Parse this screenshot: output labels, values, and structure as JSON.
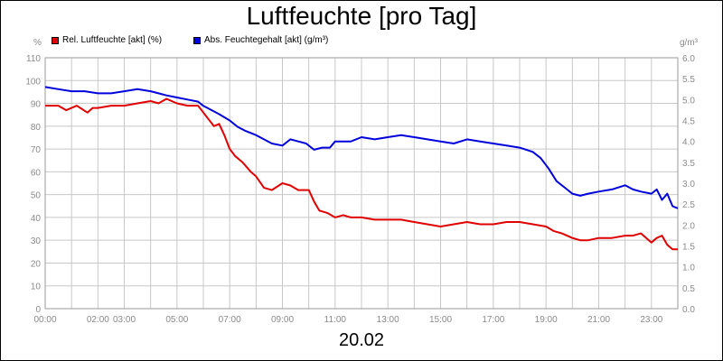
{
  "chart_data": {
    "type": "line",
    "title": "Luftfeuchte [pro Tag]",
    "xlabel": "20.02",
    "ylabel_left": "%",
    "ylabel_right": "g/m³",
    "ylim_left": [
      0,
      110
    ],
    "ylim_right": [
      0,
      6
    ],
    "grid": true,
    "legend_placement": "top-left",
    "x_tick_labels": [
      "00:00",
      "02:00",
      "03:00",
      "05:00",
      "07:00",
      "09:00",
      "11:00",
      "13:00",
      "15:00",
      "17:00",
      "19:00",
      "21:00",
      "23:00"
    ],
    "x_tick_hours": [
      0,
      2,
      3,
      5,
      7,
      9,
      11,
      13,
      15,
      17,
      19,
      21,
      23
    ],
    "x_range_hours": [
      0,
      24
    ],
    "y_left_ticks": [
      0,
      10,
      20,
      30,
      40,
      50,
      60,
      70,
      80,
      90,
      100,
      110
    ],
    "y_right_ticks": [
      "0.0",
      "0.5",
      "1.0",
      "1.5",
      "2.0",
      "2.5",
      "3.0",
      "3.5",
      "4.0",
      "4.5",
      "5.0",
      "5.5",
      "6.0"
    ],
    "series": [
      {
        "name": "Rel. Luftfeuchte [akt] (%)",
        "axis": "left",
        "color": "#e00000",
        "x": [
          0,
          0.5,
          0.8,
          1.0,
          1.2,
          1.6,
          1.8,
          2.0,
          2.5,
          3.0,
          3.5,
          4.0,
          4.3,
          4.6,
          5.0,
          5.4,
          5.8,
          6.0,
          6.2,
          6.4,
          6.6,
          6.8,
          7.0,
          7.2,
          7.5,
          7.8,
          8.0,
          8.3,
          8.6,
          9.0,
          9.3,
          9.6,
          10.0,
          10.2,
          10.4,
          10.7,
          11.0,
          11.3,
          11.6,
          12.0,
          12.5,
          13.0,
          13.5,
          14.0,
          14.5,
          15.0,
          15.5,
          16.0,
          16.5,
          17.0,
          17.5,
          18.0,
          18.5,
          19.0,
          19.3,
          19.6,
          20.0,
          20.3,
          20.6,
          21.0,
          21.5,
          22.0,
          22.3,
          22.6,
          23.0,
          23.2,
          23.4,
          23.6,
          23.8,
          24.0
        ],
        "y": [
          89,
          89,
          87,
          88,
          89,
          86,
          88,
          88,
          89,
          89,
          90,
          91,
          90,
          92,
          90,
          89,
          89,
          86,
          83,
          80,
          81,
          76,
          70,
          67,
          64,
          60,
          58,
          53,
          52,
          55,
          54,
          52,
          52,
          47,
          43,
          42,
          40,
          41,
          40,
          40,
          39,
          39,
          39,
          38,
          37,
          36,
          37,
          38,
          37,
          37,
          38,
          38,
          37,
          36,
          34,
          33,
          31,
          30,
          30,
          31,
          31,
          32,
          32,
          33,
          29,
          31,
          32,
          28,
          26,
          26
        ]
      },
      {
        "name": "Abs. Feuchtegehalt [akt] (g/m³)",
        "axis": "right",
        "color": "#0000dd",
        "x": [
          0,
          0.5,
          1.0,
          1.5,
          2.0,
          2.5,
          3.0,
          3.5,
          4.0,
          4.3,
          4.6,
          5.0,
          5.4,
          5.8,
          6.0,
          6.3,
          6.6,
          7.0,
          7.3,
          7.6,
          8.0,
          8.3,
          8.6,
          9.0,
          9.3,
          9.6,
          9.9,
          10.2,
          10.5,
          10.8,
          11.0,
          11.3,
          11.6,
          12.0,
          12.5,
          13.0,
          13.5,
          14.0,
          14.5,
          15.0,
          15.5,
          16.0,
          16.5,
          17.0,
          17.5,
          18.0,
          18.5,
          18.8,
          19.1,
          19.4,
          19.7,
          20.0,
          20.3,
          20.6,
          21.0,
          21.5,
          22.0,
          22.3,
          22.6,
          23.0,
          23.2,
          23.4,
          23.6,
          23.8,
          24.0
        ],
        "y": [
          5.3,
          5.25,
          5.2,
          5.2,
          5.15,
          5.15,
          5.2,
          5.25,
          5.2,
          5.15,
          5.1,
          5.05,
          5.0,
          4.95,
          4.85,
          4.75,
          4.65,
          4.5,
          4.35,
          4.25,
          4.15,
          4.05,
          3.95,
          3.9,
          4.05,
          4.0,
          3.95,
          3.8,
          3.85,
          3.85,
          4.0,
          4.0,
          4.0,
          4.1,
          4.05,
          4.1,
          4.15,
          4.1,
          4.05,
          4.0,
          3.95,
          4.05,
          4.0,
          3.95,
          3.9,
          3.85,
          3.75,
          3.6,
          3.35,
          3.05,
          2.9,
          2.75,
          2.7,
          2.75,
          2.8,
          2.85,
          2.95,
          2.85,
          2.8,
          2.75,
          2.85,
          2.6,
          2.75,
          2.45,
          2.4
        ]
      }
    ]
  }
}
